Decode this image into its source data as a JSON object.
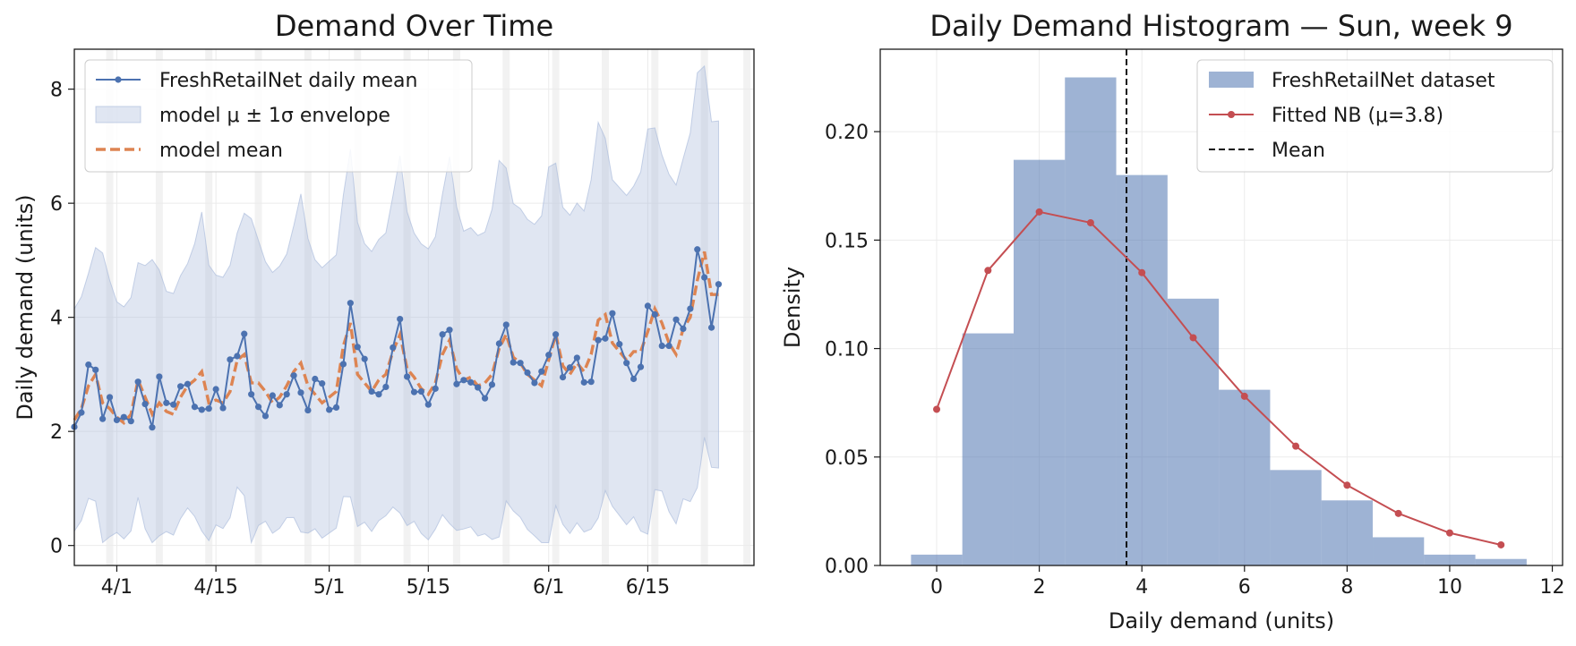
{
  "chart_data": [
    {
      "type": "line",
      "title": "Demand Over Time",
      "xlabel": "",
      "ylabel": "Daily demand (units)",
      "x_start": "2024-03-26",
      "x_end": "2024-06-30",
      "x_ticks": [
        {
          "date": "2024-04-01",
          "label": "4/1"
        },
        {
          "date": "2024-04-15",
          "label": "4/15"
        },
        {
          "date": "2024-05-01",
          "label": "5/1"
        },
        {
          "date": "2024-05-15",
          "label": "5/15"
        },
        {
          "date": "2024-06-01",
          "label": "6/1"
        },
        {
          "date": "2024-06-15",
          "label": "6/15"
        }
      ],
      "ylim": [
        -0.35,
        8.7
      ],
      "y_ticks": [
        0,
        2,
        4,
        6,
        8
      ],
      "grid": true,
      "legend": "upper-left",
      "highlighted_days": [
        "2024-03-31",
        "2024-04-07",
        "2024-04-14",
        "2024-04-21",
        "2024-04-28",
        "2024-05-05",
        "2024-05-12",
        "2024-05-19",
        "2024-05-26",
        "2024-06-02",
        "2024-06-09",
        "2024-06-16",
        "2024-06-23",
        "2024-06-29"
      ],
      "series": [
        {
          "name": "FreshRetailNet daily mean",
          "kind": "line-markers",
          "color": "#4c72b0",
          "values": [
            2.08,
            2.33,
            3.17,
            3.08,
            2.22,
            2.6,
            2.2,
            2.25,
            2.18,
            2.87,
            2.48,
            2.07,
            2.96,
            2.5,
            2.47,
            2.79,
            2.83,
            2.43,
            2.38,
            2.4,
            2.74,
            2.41,
            3.26,
            3.32,
            3.71,
            2.65,
            2.43,
            2.27,
            2.63,
            2.46,
            2.65,
            2.98,
            2.68,
            2.37,
            2.92,
            2.84,
            2.38,
            2.42,
            3.18,
            4.25,
            3.48,
            3.27,
            2.7,
            2.65,
            2.78,
            3.47,
            3.97,
            2.96,
            2.69,
            2.7,
            2.47,
            2.75,
            3.7,
            3.78,
            2.83,
            2.9,
            2.86,
            2.77,
            2.58,
            2.82,
            3.54,
            3.87,
            3.21,
            3.2,
            3.03,
            2.85,
            3.05,
            3.34,
            3.7,
            2.95,
            3.12,
            3.29,
            2.86,
            2.87,
            3.6,
            3.63,
            4.07,
            3.53,
            3.2,
            2.92,
            3.13,
            4.2,
            4.05,
            3.5,
            3.5,
            3.96,
            3.8,
            4.15,
            5.19,
            4.7,
            3.82,
            4.58
          ]
        },
        {
          "name": "model μ ± 1σ envelope",
          "kind": "band",
          "color": "#a4b6d8"
        },
        {
          "name": "model mean",
          "kind": "dashed",
          "color": "#dd8452",
          "values": [
            2.2,
            2.4,
            2.8,
            3.0,
            2.5,
            2.4,
            2.25,
            2.15,
            2.3,
            2.9,
            2.6,
            2.3,
            2.5,
            2.35,
            2.3,
            2.6,
            2.8,
            2.9,
            3.05,
            2.5,
            2.55,
            2.5,
            2.7,
            3.25,
            3.35,
            2.85,
            2.85,
            2.7,
            2.5,
            2.6,
            2.8,
            3.05,
            3.2,
            2.8,
            2.65,
            2.5,
            2.6,
            2.7,
            3.5,
            3.9,
            3.0,
            2.85,
            2.7,
            2.9,
            3.0,
            3.4,
            3.7,
            3.1,
            2.95,
            2.75,
            2.65,
            2.85,
            3.35,
            3.6,
            3.1,
            2.9,
            2.95,
            2.8,
            2.85,
            3.0,
            3.45,
            3.7,
            3.3,
            3.2,
            3.0,
            2.9,
            2.8,
            3.25,
            3.7,
            3.15,
            3.0,
            3.2,
            3.05,
            3.35,
            3.95,
            4.05,
            3.55,
            3.4,
            3.25,
            3.4,
            3.4,
            3.75,
            4.15,
            3.9,
            3.55,
            3.35,
            3.8,
            4.0,
            4.65,
            5.15,
            4.4,
            4.4
          ]
        }
      ]
    },
    {
      "type": "bar",
      "title": "Daily Demand Histogram — Sun, week 9",
      "xlabel": "Daily demand (units)",
      "ylabel": "Density",
      "xlim": [
        -1.1,
        12.2
      ],
      "ylim": [
        0,
        0.238
      ],
      "x_ticks": [
        0,
        2,
        4,
        6,
        8,
        10,
        12
      ],
      "y_ticks": [
        0.0,
        0.05,
        0.1,
        0.15,
        0.2
      ],
      "y_tick_labels": [
        "0.00",
        "0.05",
        "0.10",
        "0.15",
        "0.20"
      ],
      "grid": true,
      "legend": "upper-right",
      "series": [
        {
          "name": "FreshRetailNet dataset",
          "kind": "histogram",
          "color": "#4c72b0",
          "bins": [
            0,
            1,
            2,
            3,
            4,
            5,
            6,
            7,
            8,
            9,
            10,
            11
          ],
          "values": [
            0.005,
            0.107,
            0.187,
            0.225,
            0.18,
            0.123,
            0.081,
            0.044,
            0.03,
            0.013,
            0.005,
            0.003
          ]
        },
        {
          "name": "Fitted NB (μ=3.8)",
          "kind": "line-markers",
          "color": "#c44e52",
          "x": [
            0,
            1,
            2,
            3,
            4,
            5,
            6,
            7,
            8,
            9,
            10,
            11
          ],
          "values": [
            0.072,
            0.136,
            0.163,
            0.158,
            0.135,
            0.105,
            0.078,
            0.055,
            0.037,
            0.024,
            0.015,
            0.0095
          ]
        },
        {
          "name": "Mean",
          "kind": "vline",
          "color": "#111111",
          "x": 3.7
        }
      ]
    }
  ]
}
